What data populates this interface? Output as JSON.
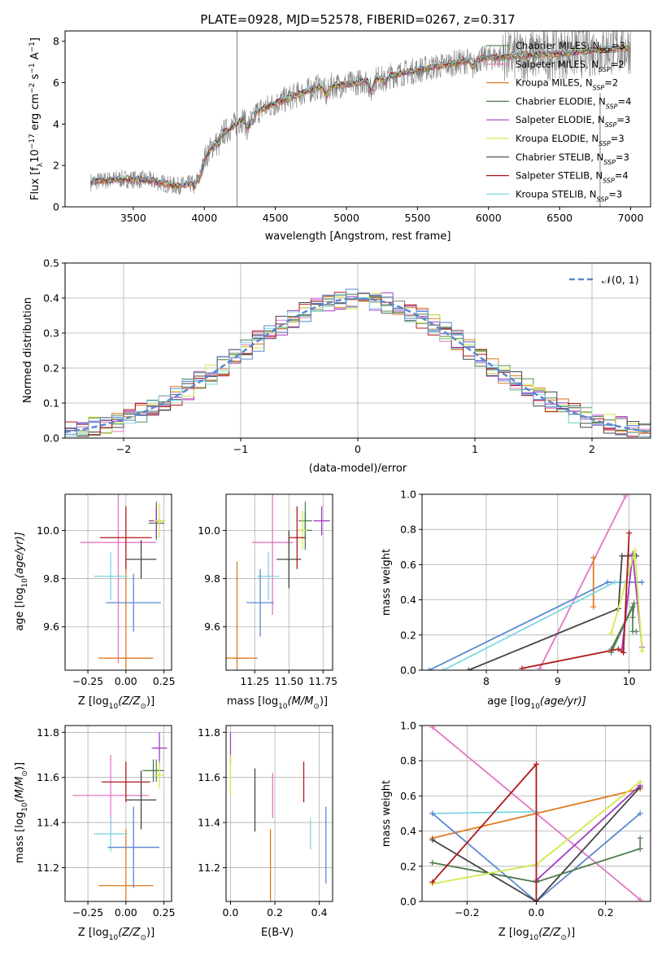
{
  "chart_data": [
    {
      "id": "spectrum",
      "type": "line",
      "title": "PLATE=0928, MJD=52578, FIBERID=0267, z=0.317",
      "xlabel": "wavelength [Angstrom, rest frame]",
      "ylabel_main": "Flux [f",
      "ylabel_lambda": "λ",
      "ylabel_tail": "10",
      "ylabel_exp": "−17",
      "ylabel_units": " erg cm",
      "ylabel_exp2": "−2",
      "ylabel_s": " s",
      "ylabel_exp3": "−1",
      "ylabel_A": " A",
      "ylabel_exp4": "−1",
      "ylabel_close": "]",
      "xlim": [
        3020,
        7140
      ],
      "ylim": [
        0,
        8.5
      ],
      "xticks": [
        3500,
        4000,
        4500,
        5000,
        5500,
        6000,
        6500,
        7000
      ],
      "yticks": [
        0,
        2,
        4,
        6,
        8
      ],
      "legend_position": "top-right",
      "continuum_x": [
        3200,
        3400,
        3600,
        3800,
        3900,
        4000,
        4100,
        4300,
        4500,
        4800,
        5000,
        5200,
        5500,
        5800,
        6000,
        6200,
        6500,
        6800,
        7000
      ],
      "continuum_y": [
        1.2,
        1.35,
        1.3,
        1.0,
        1.1,
        2.3,
        3.4,
        4.4,
        5.0,
        5.8,
        5.9,
        6.2,
        6.6,
        7.0,
        7.2,
        7.3,
        7.4,
        7.6,
        7.7
      ],
      "series": [
        {
          "label": "Chabrier MILES, N",
          "sub": "SSP",
          "n": "=3",
          "color": "#5a8a5a"
        },
        {
          "label": "Salpeter MILES, N",
          "sub": "SSP",
          "n": "=2",
          "color": "#e377c2"
        },
        {
          "label": "Kroupa MILES, N",
          "sub": "SSP",
          "n": "=2",
          "color": "#e07b20"
        },
        {
          "label": "Chabrier ELODIE, N",
          "sub": "SSP",
          "n": "=4",
          "color": "#4c7a4c"
        },
        {
          "label": "Salpeter ELODIE, N",
          "sub": "SSP",
          "n": "=3",
          "color": "#a23cc4"
        },
        {
          "label": "Kroupa ELODIE, N",
          "sub": "SSP",
          "n": "=3",
          "color": "#d4e84a"
        },
        {
          "label": "Chabrier STELIB, N",
          "sub": "SSP",
          "n": "=3",
          "color": "#444444"
        },
        {
          "label": "Salpeter STELIB, N",
          "sub": "SSP",
          "n": "=4",
          "color": "#b01818"
        },
        {
          "label": "Kroupa STELIB, N",
          "sub": "SSP",
          "n": "=3",
          "color": "#7fd6e0"
        }
      ]
    },
    {
      "id": "residuals",
      "type": "line",
      "xlabel": "(data-model)/error",
      "ylabel": "Normed distribution",
      "xlim": [
        -2.5,
        2.5
      ],
      "ylim": [
        0,
        0.5
      ],
      "xticks": [
        -2,
        -1,
        0,
        1,
        2
      ],
      "yticks": [
        0.0,
        0.1,
        0.2,
        0.3,
        0.4,
        0.5
      ],
      "grid": true,
      "legend_label": "𝒩(0, 1)",
      "legend_position": "top-right",
      "gauss_color": "#5b87d0",
      "hist_colors": [
        "#5a8a5a",
        "#e377c2",
        "#e07b20",
        "#4c7a4c",
        "#a23cc4",
        "#d4e84a",
        "#444444",
        "#b01818",
        "#7fd6e0",
        "#5b87d0"
      ]
    },
    {
      "id": "Z-age",
      "type": "scatter",
      "xlabel": "Z [log",
      "xlabel_sub": "10",
      "xlabel_tail": "(Z/Z",
      "xlabel_sun": "⊙",
      "xlabel_close": ")]",
      "ylabel": "age  [log",
      "ylabel_sub": "10",
      "ylabel_tail": "(age/yr)]",
      "xlim": [
        -0.4,
        0.3
      ],
      "ylim": [
        9.42,
        10.15
      ],
      "xticks": [
        "−0.25",
        "0.00",
        "0.25"
      ],
      "xtick_vals": [
        -0.25,
        0.0,
        0.25
      ],
      "yticks": [
        "9.6",
        "9.8",
        "10.0"
      ],
      "ytick_vals": [
        9.6,
        9.8,
        10.0
      ],
      "points": [
        {
          "x": 0.2,
          "xe": 0.04,
          "y": 10.04,
          "ye": 0.08,
          "color": "#5a8a5a"
        },
        {
          "x": -0.05,
          "xe": 0.25,
          "y": 9.95,
          "ye": 0.5,
          "color": "#e377c2"
        },
        {
          "x": 0.0,
          "xe": 0.18,
          "y": 9.47,
          "ye": 0.4,
          "color": "#e07b20"
        },
        {
          "x": 0.2,
          "xe": 0.05,
          "y": 10.03,
          "ye": 0.06,
          "color": "#4c7a4c"
        },
        {
          "x": 0.2,
          "xe": 0.05,
          "y": 10.04,
          "ye": 0.06,
          "color": "#a23cc4"
        },
        {
          "x": 0.22,
          "xe": 0.04,
          "y": 10.04,
          "ye": 0.07,
          "color": "#d4e84a"
        },
        {
          "x": 0.1,
          "xe": 0.1,
          "y": 9.88,
          "ye": 0.08,
          "color": "#444444"
        },
        {
          "x": 0.0,
          "xe": 0.17,
          "y": 9.97,
          "ye": 0.13,
          "color": "#b01818"
        },
        {
          "x": -0.1,
          "xe": 0.11,
          "y": 9.81,
          "ye": 0.1,
          "color": "#7fd6e0"
        },
        {
          "x": 0.05,
          "xe": 0.18,
          "y": 9.7,
          "ye": 0.12,
          "color": "#5b87d0"
        }
      ]
    },
    {
      "id": "mass-age",
      "type": "scatter",
      "xlabel": "mass [log",
      "xlabel_sub": "10",
      "xlabel_tail": "(M/M",
      "xlabel_sun": "⊙",
      "xlabel_close": ")]",
      "xlim": [
        11.04,
        11.82
      ],
      "ylim": [
        9.42,
        10.15
      ],
      "xticks": [
        "11.25",
        "11.50",
        "11.75"
      ],
      "xtick_vals": [
        11.25,
        11.5,
        11.75
      ],
      "yticks": [
        "9.6",
        "9.8",
        "10.0"
      ],
      "ytick_vals": [
        9.6,
        9.8,
        10.0
      ],
      "points": [
        {
          "x": 11.62,
          "xe": 0.05,
          "y": 10.04,
          "ye": 0.08,
          "color": "#5a8a5a"
        },
        {
          "x": 11.38,
          "xe": 0.15,
          "y": 9.95,
          "ye": 0.3,
          "color": "#e377c2"
        },
        {
          "x": 11.12,
          "xe": 0.15,
          "y": 9.47,
          "ye": 0.4,
          "color": "#e07b20"
        },
        {
          "x": 11.62,
          "xe": 0.05,
          "y": 10.0,
          "ye": 0.08,
          "color": "#4c7a4c"
        },
        {
          "x": 11.74,
          "xe": 0.06,
          "y": 10.04,
          "ye": 0.06,
          "color": "#a23cc4"
        },
        {
          "x": 11.6,
          "xe": 0.03,
          "y": 10.0,
          "ye": 0.08,
          "color": "#d4e84a"
        },
        {
          "x": 11.5,
          "xe": 0.09,
          "y": 9.88,
          "ye": 0.12,
          "color": "#444444"
        },
        {
          "x": 11.56,
          "xe": 0.06,
          "y": 9.97,
          "ye": 0.13,
          "color": "#b01818"
        },
        {
          "x": 11.35,
          "xe": 0.08,
          "y": 9.81,
          "ye": 0.1,
          "color": "#7fd6e0"
        },
        {
          "x": 11.29,
          "xe": 0.1,
          "y": 9.7,
          "ye": 0.14,
          "color": "#5b87d0"
        }
      ]
    },
    {
      "id": "age-weight",
      "type": "line",
      "xlabel": "age  [log",
      "xlabel_sub": "10",
      "xlabel_tail": "(age/yr)]",
      "ylabel": "mass weight",
      "xlim": [
        7.1,
        10.3
      ],
      "ylim": [
        0,
        1.0
      ],
      "xticks": [
        8,
        9,
        10
      ],
      "yticks": [
        "0.0",
        "0.2",
        "0.4",
        "0.6",
        "0.8",
        "1.0"
      ],
      "ytick_vals": [
        0,
        0.2,
        0.4,
        0.6,
        0.8,
        1.0
      ],
      "grid": true,
      "lines": [
        {
          "color": "#e377c2",
          "x": [
            8.75,
            9.95
          ],
          "y": [
            0.01,
            0.99
          ]
        },
        {
          "color": "#e07b20",
          "x": [
            9.5,
            9.5
          ],
          "y": [
            0.36,
            0.64
          ]
        },
        {
          "color": "#5b87d0",
          "x": [
            7.2,
            9.7,
            10.18
          ],
          "y": [
            0.0,
            0.5,
            0.5
          ]
        },
        {
          "color": "#7fd6e0",
          "x": [
            7.4,
            9.8,
            9.95
          ],
          "y": [
            0.0,
            0.5,
            0.5
          ]
        },
        {
          "color": "#444444",
          "x": [
            7.75,
            9.85,
            9.9,
            10.1
          ],
          "y": [
            0.0,
            0.35,
            0.65,
            0.65
          ]
        },
        {
          "color": "#5a8a5a",
          "x": [
            9.75,
            10.05,
            10.05,
            10.1
          ],
          "y": [
            0.1,
            0.36,
            0.22,
            0.22
          ]
        },
        {
          "color": "#4c7a4c",
          "x": [
            9.75,
            10.07,
            10.05
          ],
          "y": [
            0.12,
            0.38,
            0.3
          ]
        },
        {
          "color": "#a23cc4",
          "x": [
            9.9,
            10.05,
            10.18
          ],
          "y": [
            0.12,
            0.66,
            0.13
          ]
        },
        {
          "color": "#d4e84a",
          "x": [
            9.75,
            10.08,
            10.18
          ],
          "y": [
            0.21,
            0.68,
            0.11
          ]
        },
        {
          "color": "#b01818",
          "x": [
            8.5,
            9.85,
            9.92,
            10.0
          ],
          "y": [
            0.01,
            0.12,
            0.1,
            0.78
          ]
        }
      ]
    },
    {
      "id": "Z-mass",
      "type": "scatter",
      "xlabel": "Z [log",
      "xlabel_sub": "10",
      "xlabel_tail": "(Z/Z",
      "xlabel_sun": "⊙",
      "xlabel_close": ")]",
      "ylabel": "mass [log",
      "ylabel_sub": "10",
      "ylabel_tail": "(M/M",
      "ylabel_sun": "⊙",
      "ylabel_close": ")]",
      "xlim": [
        -0.4,
        0.3
      ],
      "ylim": [
        11.05,
        11.83
      ],
      "xticks": [
        "−0.25",
        "0.00",
        "0.25"
      ],
      "xtick_vals": [
        -0.25,
        0.0,
        0.25
      ],
      "yticks": [
        "11.2",
        "11.4",
        "11.6",
        "11.8"
      ],
      "ytick_vals": [
        11.2,
        11.4,
        11.6,
        11.8
      ],
      "points": [
        {
          "x": 0.2,
          "xe": 0.04,
          "y": 11.63,
          "ye": 0.05,
          "color": "#5a8a5a"
        },
        {
          "x": -0.1,
          "xe": 0.25,
          "y": 11.52,
          "ye": 0.18,
          "color": "#e377c2"
        },
        {
          "x": 0.0,
          "xe": 0.18,
          "y": 11.12,
          "ye": 0.25,
          "color": "#e07b20"
        },
        {
          "x": 0.18,
          "xe": 0.07,
          "y": 11.63,
          "ye": 0.05,
          "color": "#4c7a4c"
        },
        {
          "x": 0.22,
          "xe": 0.05,
          "y": 11.73,
          "ye": 0.07,
          "color": "#a23cc4"
        },
        {
          "x": 0.22,
          "xe": 0.03,
          "y": 11.61,
          "ye": 0.06,
          "color": "#d4e84a"
        },
        {
          "x": 0.1,
          "xe": 0.1,
          "y": 11.5,
          "ye": 0.13,
          "color": "#444444"
        },
        {
          "x": 0.0,
          "xe": 0.16,
          "y": 11.58,
          "ye": 0.09,
          "color": "#b01818"
        },
        {
          "x": -0.1,
          "xe": 0.11,
          "y": 11.35,
          "ye": 0.08,
          "color": "#7fd6e0"
        },
        {
          "x": 0.05,
          "xe": 0.17,
          "y": 11.29,
          "ye": 0.18,
          "color": "#5b87d0"
        }
      ]
    },
    {
      "id": "EBV-mass",
      "type": "scatter",
      "xlabel": "E(B-V)",
      "xlim": [
        -0.02,
        0.46
      ],
      "ylim": [
        11.05,
        11.83
      ],
      "xticks": [
        "0.0",
        "0.2",
        "0.4"
      ],
      "xtick_vals": [
        0.0,
        0.2,
        0.4
      ],
      "yticks": [
        "11.2",
        "11.4",
        "11.6",
        "11.8"
      ],
      "ytick_vals": [
        11.2,
        11.4,
        11.6,
        11.8
      ],
      "points": [
        {
          "x": 0.0,
          "y": 11.73,
          "ye": 0.07,
          "color": "#a23cc4"
        },
        {
          "x": 0.0,
          "y": 11.61,
          "ye": 0.09,
          "color": "#d4e84a"
        },
        {
          "x": 0.11,
          "y": 11.5,
          "ye": 0.14,
          "color": "#444444"
        },
        {
          "x": 0.19,
          "y": 11.52,
          "ye": 0.1,
          "color": "#e377c2"
        },
        {
          "x": 0.18,
          "y": 11.12,
          "ye": 0.25,
          "color": "#e07b20"
        },
        {
          "x": 0.33,
          "y": 11.58,
          "ye": 0.09,
          "color": "#b01818"
        },
        {
          "x": 0.36,
          "y": 11.35,
          "ye": 0.07,
          "color": "#7fd6e0"
        },
        {
          "x": 0.43,
          "y": 11.3,
          "ye": 0.17,
          "color": "#5b87d0"
        }
      ]
    },
    {
      "id": "Z-weight",
      "type": "line",
      "xlabel": "Z [log",
      "xlabel_sub": "10",
      "xlabel_tail": "(Z/Z",
      "xlabel_sun": "⊙",
      "xlabel_close": ")]",
      "ylabel": "mass weight",
      "xlim": [
        -0.33,
        0.33
      ],
      "ylim": [
        0,
        1.0
      ],
      "xticks": [
        "−0.2",
        "0.0",
        "0.2"
      ],
      "xtick_vals": [
        -0.2,
        0.0,
        0.2
      ],
      "yticks": [
        "0.0",
        "0.2",
        "0.4",
        "0.6",
        "0.8",
        "1.0"
      ],
      "ytick_vals": [
        0,
        0.2,
        0.4,
        0.6,
        0.8,
        1.0
      ],
      "grid": true,
      "lines": [
        {
          "color": "#e377c2",
          "x": [
            -0.3,
            0.3
          ],
          "y": [
            0.99,
            0.01
          ]
        },
        {
          "color": "#e07b20",
          "x": [
            -0.3,
            0.0,
            0.3
          ],
          "y": [
            0.36,
            0.5,
            0.64
          ]
        },
        {
          "color": "#7fd6e0",
          "x": [
            -0.3,
            0.0,
            0.0
          ],
          "y": [
            0.5,
            0.51,
            0.0
          ]
        },
        {
          "color": "#5b87d0",
          "x": [
            -0.3,
            0.0,
            0.3
          ],
          "y": [
            0.5,
            0.0,
            0.5
          ]
        },
        {
          "color": "#444444",
          "x": [
            -0.3,
            0.0,
            0.3
          ],
          "y": [
            0.35,
            0.0,
            0.65
          ]
        },
        {
          "color": "#4c7a4c",
          "x": [
            -0.3,
            0.0,
            0.3
          ],
          "y": [
            0.22,
            0.11,
            0.3
          ]
        },
        {
          "color": "#5a8a5a",
          "x": [
            0.3,
            0.3
          ],
          "y": [
            0.36,
            0.3
          ]
        },
        {
          "color": "#a23cc4",
          "x": [
            0.0,
            0.3
          ],
          "y": [
            0.12,
            0.66
          ]
        },
        {
          "color": "#d4e84a",
          "x": [
            -0.3,
            0.0,
            0.3
          ],
          "y": [
            0.1,
            0.21,
            0.68
          ]
        },
        {
          "color": "#b01818",
          "x": [
            -0.3,
            0.0,
            0.0
          ],
          "y": [
            0.11,
            0.78,
            0.0
          ]
        }
      ]
    }
  ]
}
